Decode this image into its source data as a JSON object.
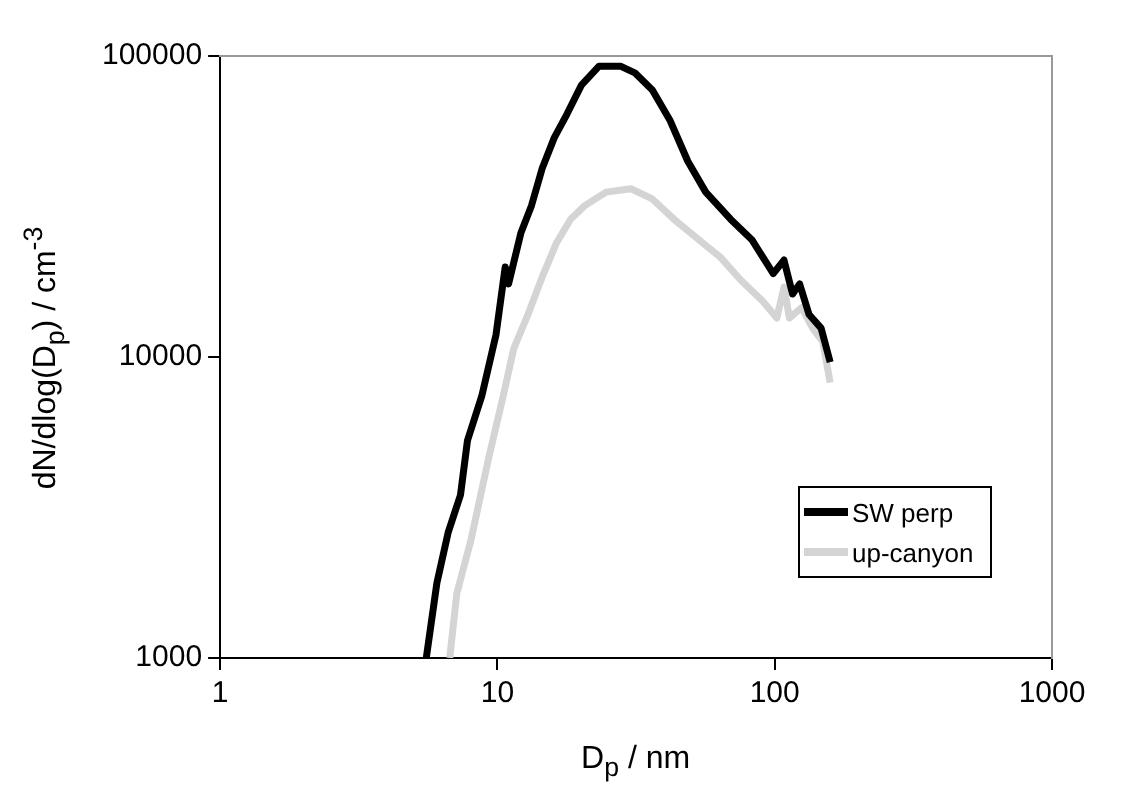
{
  "chart_data": {
    "type": "line",
    "xlabel": "D$_{p}$ / nm",
    "ylabel": "dN/dlog(D$_{p}$) / cm$^{-3}$",
    "log": "xy",
    "xlim": [
      1,
      1000
    ],
    "ylim": [
      1000,
      100000
    ],
    "xticks": [
      1,
      10,
      100,
      1000
    ],
    "yticks": [
      1000,
      10000,
      100000
    ],
    "grid": false,
    "legend": "bottom right",
    "marker": "none",
    "line_style": "solid",
    "series": [
      {
        "name": "SW perp",
        "color": "#000000",
        "x": [
          5.54,
          6.05,
          6.65,
          7.36,
          7.8,
          8.78,
          9.88,
          10.67,
          10.97,
          12.15,
          13.27,
          14.51,
          16.04,
          17.84,
          20.09,
          23.26,
          27.78,
          31.3,
          36.2,
          42,
          48.6,
          56.4,
          69.3,
          82.7,
          98.8,
          108,
          116,
          123,
          133,
          147,
          158.5
        ],
        "values": [
          1000,
          1774,
          2620,
          3480,
          5280,
          7410,
          11830,
          19900,
          17490,
          25800,
          31830,
          42360,
          53550,
          64270,
          80000,
          92500,
          92500,
          87900,
          77100,
          60900,
          44700,
          35300,
          28700,
          24540,
          18920,
          20990,
          16190,
          17490,
          13840,
          12470,
          9610
        ]
      },
      {
        "name": "up-canyon",
        "color": "#d4d4d4",
        "x": [
          6.73,
          7.14,
          8.04,
          9.31,
          10.49,
          11.45,
          12.89,
          14.51,
          16.33,
          18.36,
          20.66,
          24.66,
          30.3,
          36.2,
          43.3,
          53.2,
          63.5,
          75.7,
          90.4,
          101.8,
          108,
          113,
          125,
          137,
          149,
          158.5
        ],
        "values": [
          1000,
          1640,
          2480,
          4640,
          7410,
          10660,
          13840,
          18450,
          23930,
          28700,
          31830,
          35300,
          36220,
          33500,
          28700,
          24540,
          21500,
          17950,
          15350,
          13480,
          17060,
          13480,
          14590,
          12470,
          11250,
          8220
        ]
      }
    ]
  }
}
